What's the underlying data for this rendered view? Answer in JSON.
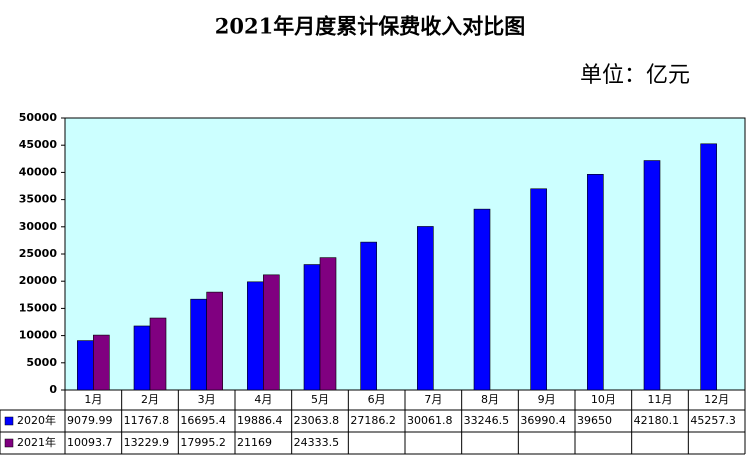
{
  "chart_data": {
    "type": "bar",
    "title": "2021年月度累计保费收入对比图",
    "subtitle": "单位：亿元",
    "categories": [
      "1月",
      "2月",
      "3月",
      "4月",
      "5月",
      "6月",
      "7月",
      "8月",
      "9月",
      "10月",
      "11月",
      "12月"
    ],
    "series": [
      {
        "name": "2020年",
        "color": "#0000ff",
        "values": [
          9079.99,
          11767.8,
          16695.4,
          19886.4,
          23063.8,
          27186.2,
          30061.8,
          33246.5,
          36990.4,
          39650,
          42180.1,
          45257.3
        ]
      },
      {
        "name": "2021年",
        "color": "#800080",
        "values": [
          10093.7,
          13229.9,
          17995.2,
          21169,
          24333.5,
          null,
          null,
          null,
          null,
          null,
          null,
          null
        ]
      }
    ],
    "ylim": [
      0,
      50000
    ],
    "yticks": [
      0,
      5000,
      10000,
      15000,
      20000,
      25000,
      30000,
      35000,
      40000,
      45000,
      50000
    ],
    "plot_background": "#ccffff",
    "data_table": true
  }
}
